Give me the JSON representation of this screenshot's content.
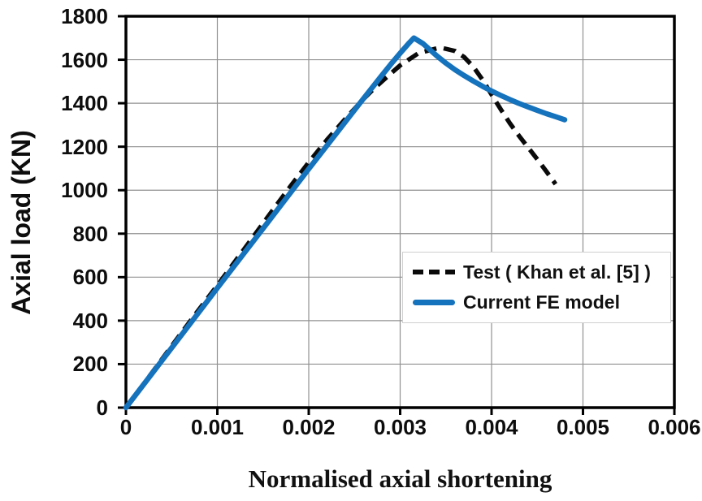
{
  "colors": {
    "axis": "#000000",
    "grid": "#919191",
    "test_line": "#0a0a0a",
    "fe_line": "#1572bc",
    "legend_border": "#cfcfcf",
    "background": "#ffffff"
  },
  "chart_data": {
    "type": "line",
    "title": "",
    "xlabel": "Normalised axial shortening",
    "ylabel": "Axial load (KN)",
    "xlim": [
      0,
      0.006
    ],
    "ylim": [
      0,
      1800
    ],
    "xtick_step": 0.001,
    "ytick_step": 200,
    "xtick_labels": [
      "0",
      "0.001",
      "0.002",
      "0.003",
      "0.004",
      "0.005",
      "0.006"
    ],
    "ytick_labels": [
      "0",
      "200",
      "400",
      "600",
      "800",
      "1000",
      "1200",
      "1400",
      "1600",
      "1800"
    ],
    "grid": true,
    "legend_position": "inside-right",
    "series": [
      {
        "name": "Test ( Khan et al. [5] )",
        "style": "dashed",
        "color": "#0a0a0a",
        "points": [
          [
            0,
            0
          ],
          [
            0.0002,
            112
          ],
          [
            0.0004,
            226
          ],
          [
            0.0006,
            340
          ],
          [
            0.0008,
            452
          ],
          [
            0.001,
            562
          ],
          [
            0.0012,
            676
          ],
          [
            0.0014,
            790
          ],
          [
            0.0016,
            905
          ],
          [
            0.0018,
            1018
          ],
          [
            0.002,
            1128
          ],
          [
            0.0022,
            1232
          ],
          [
            0.0024,
            1328
          ],
          [
            0.0026,
            1420
          ],
          [
            0.0027,
            1462
          ],
          [
            0.0028,
            1500
          ],
          [
            0.003,
            1574
          ],
          [
            0.0032,
            1630
          ],
          [
            0.0034,
            1652
          ],
          [
            0.00345,
            1655
          ],
          [
            0.0036,
            1640
          ],
          [
            0.0037,
            1612
          ],
          [
            0.0038,
            1568
          ],
          [
            0.0039,
            1508
          ],
          [
            0.004,
            1440
          ],
          [
            0.0041,
            1372
          ],
          [
            0.0042,
            1308
          ],
          [
            0.0043,
            1250
          ],
          [
            0.0044,
            1196
          ],
          [
            0.0045,
            1142
          ],
          [
            0.0046,
            1086
          ],
          [
            0.0047,
            1028
          ]
        ]
      },
      {
        "name": "Current FE model",
        "style": "solid",
        "color": "#1572bc",
        "points": [
          [
            0,
            0
          ],
          [
            0.0005,
            275
          ],
          [
            0.001,
            550
          ],
          [
            0.0015,
            824
          ],
          [
            0.002,
            1098
          ],
          [
            0.0022,
            1206
          ],
          [
            0.0024,
            1314
          ],
          [
            0.0026,
            1422
          ],
          [
            0.0028,
            1528
          ],
          [
            0.0029,
            1580
          ],
          [
            0.003,
            1630
          ],
          [
            0.0031,
            1678
          ],
          [
            0.00315,
            1700
          ],
          [
            0.00325,
            1674
          ],
          [
            0.0034,
            1618
          ],
          [
            0.0035,
            1584
          ],
          [
            0.0036,
            1554
          ],
          [
            0.0037,
            1527
          ],
          [
            0.0038,
            1502
          ],
          [
            0.0039,
            1478
          ],
          [
            0.004,
            1456
          ],
          [
            0.0041,
            1436
          ],
          [
            0.0042,
            1417
          ],
          [
            0.0043,
            1399
          ],
          [
            0.0044,
            1383
          ],
          [
            0.0045,
            1367
          ],
          [
            0.0046,
            1352
          ],
          [
            0.0047,
            1338
          ],
          [
            0.0048,
            1324
          ]
        ]
      }
    ]
  }
}
